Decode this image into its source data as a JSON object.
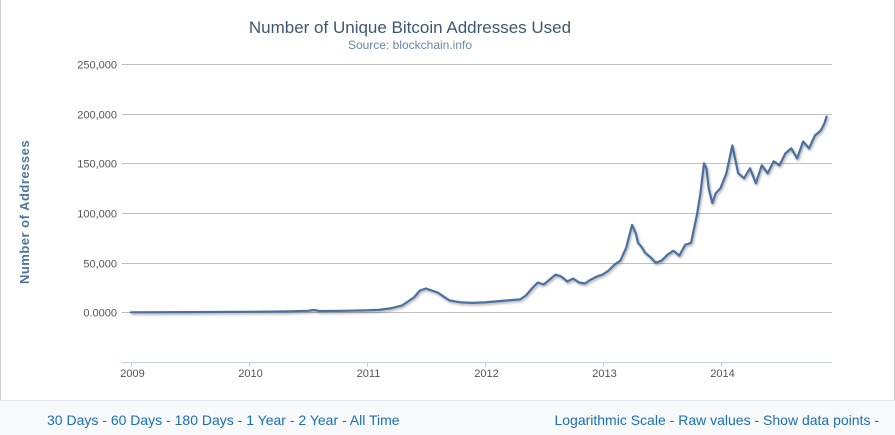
{
  "chart_data": {
    "type": "line",
    "title": "Number of Unique Bitcoin Addresses Used",
    "subtitle": "Source: blockchain.info",
    "xlabel": "",
    "ylabel": "Number of Addresses",
    "xlim": [
      2009.0,
      2014.92
    ],
    "ylim": [
      -50000,
      250000
    ],
    "x_ticks": [
      "2009",
      "2010",
      "2011",
      "2012",
      "2013",
      "2014"
    ],
    "y_ticks": [
      "250,000",
      "200,000",
      "150,000",
      "100,000",
      "50,000",
      "0.0000"
    ],
    "y_tick_values": [
      250000,
      200000,
      150000,
      100000,
      50000,
      0
    ],
    "grid": true,
    "series": [
      {
        "name": "Unique Bitcoin Addresses",
        "color": "#4a6f9e",
        "x": [
          2009.0,
          2009.5,
          2010.0,
          2010.3,
          2010.5,
          2010.55,
          2010.6,
          2010.8,
          2011.0,
          2011.1,
          2011.2,
          2011.3,
          2011.4,
          2011.45,
          2011.5,
          2011.55,
          2011.6,
          2011.65,
          2011.7,
          2011.8,
          2011.9,
          2012.0,
          2012.1,
          2012.2,
          2012.3,
          2012.35,
          2012.4,
          2012.45,
          2012.5,
          2012.55,
          2012.6,
          2012.65,
          2012.7,
          2012.75,
          2012.8,
          2012.85,
          2012.9,
          2012.95,
          2013.0,
          2013.05,
          2013.1,
          2013.15,
          2013.2,
          2013.25,
          2013.28,
          2013.3,
          2013.33,
          2013.36,
          2013.4,
          2013.45,
          2013.5,
          2013.55,
          2013.6,
          2013.65,
          2013.7,
          2013.75,
          2013.8,
          2013.83,
          2013.86,
          2013.88,
          2013.9,
          2013.93,
          2013.96,
          2014.0,
          2014.05,
          2014.1,
          2014.15,
          2014.2,
          2014.25,
          2014.3,
          2014.35,
          2014.4,
          2014.45,
          2014.5,
          2014.55,
          2014.6,
          2014.65,
          2014.7,
          2014.75,
          2014.8,
          2014.85,
          2014.88,
          2014.9
        ],
        "values": [
          0,
          200,
          500,
          800,
          1500,
          2500,
          1200,
          1500,
          2000,
          2500,
          4000,
          7000,
          15000,
          22000,
          24000,
          22000,
          20000,
          16000,
          12000,
          10000,
          9500,
          10000,
          11000,
          12000,
          13000,
          17000,
          24000,
          30000,
          28000,
          33000,
          38000,
          36000,
          31000,
          34000,
          30000,
          29000,
          33000,
          36000,
          38000,
          42000,
          48000,
          52000,
          65000,
          88000,
          80000,
          70000,
          66000,
          60000,
          56000,
          50000,
          52000,
          58000,
          62000,
          57000,
          68000,
          70000,
          98000,
          120000,
          150000,
          145000,
          125000,
          110000,
          120000,
          125000,
          140000,
          168000,
          140000,
          135000,
          145000,
          130000,
          148000,
          140000,
          152000,
          148000,
          160000,
          165000,
          155000,
          172000,
          165000,
          178000,
          183000,
          190000,
          197000
        ]
      }
    ]
  },
  "footer": {
    "left_links": [
      "30 Days",
      "60 Days",
      "180 Days",
      "1 Year",
      "2 Year",
      "All Time"
    ],
    "right_links": [
      "Logarithmic Scale",
      "Raw values",
      "Show data points"
    ],
    "separator": " - ",
    "trailing": " -"
  }
}
